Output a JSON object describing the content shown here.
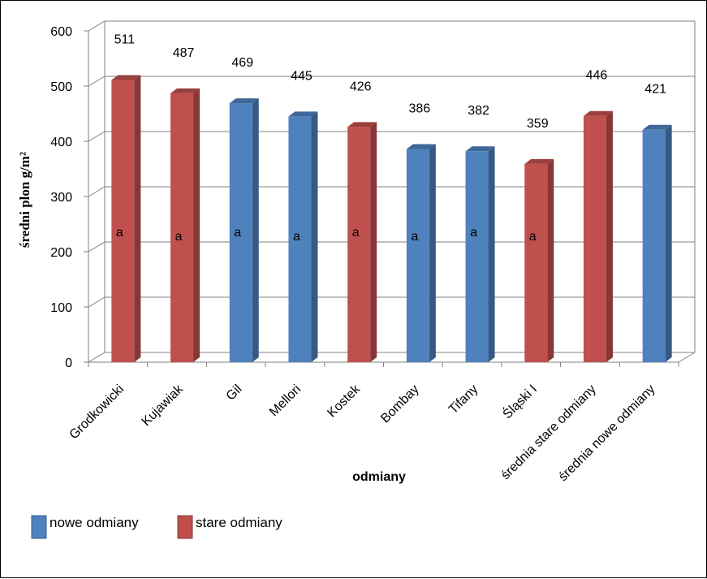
{
  "chart_data": {
    "type": "bar",
    "xlabel": "odmiany",
    "ylabel": "średni plon g/m²",
    "ylim": [
      0,
      600
    ],
    "yticks": [
      0,
      100,
      200,
      300,
      400,
      500,
      600
    ],
    "grid": true,
    "legend_position": "bottom-left",
    "categories": [
      "Grodkowicki",
      "Kujawiak",
      "Gil",
      "Mellori",
      "Kostek",
      "Bombay",
      "Tifany",
      "Śląski I",
      "średnia stare odmiany",
      "średnia nowe odmiany"
    ],
    "values": [
      511,
      487,
      469,
      445,
      426,
      386,
      382,
      359,
      446,
      421
    ],
    "groups": [
      "stare",
      "stare",
      "nowe",
      "nowe",
      "stare",
      "nowe",
      "nowe",
      "stare",
      "stare",
      "nowe"
    ],
    "significance_labels": [
      "a",
      "a",
      "a",
      "a",
      "a",
      "a",
      "a",
      "a",
      "",
      ""
    ],
    "legend": [
      {
        "key": "nowe",
        "label": "nowe odmiany",
        "color": "#4F81BD"
      },
      {
        "key": "stare",
        "label": "stare odmiany",
        "color": "#C0504D"
      }
    ]
  }
}
